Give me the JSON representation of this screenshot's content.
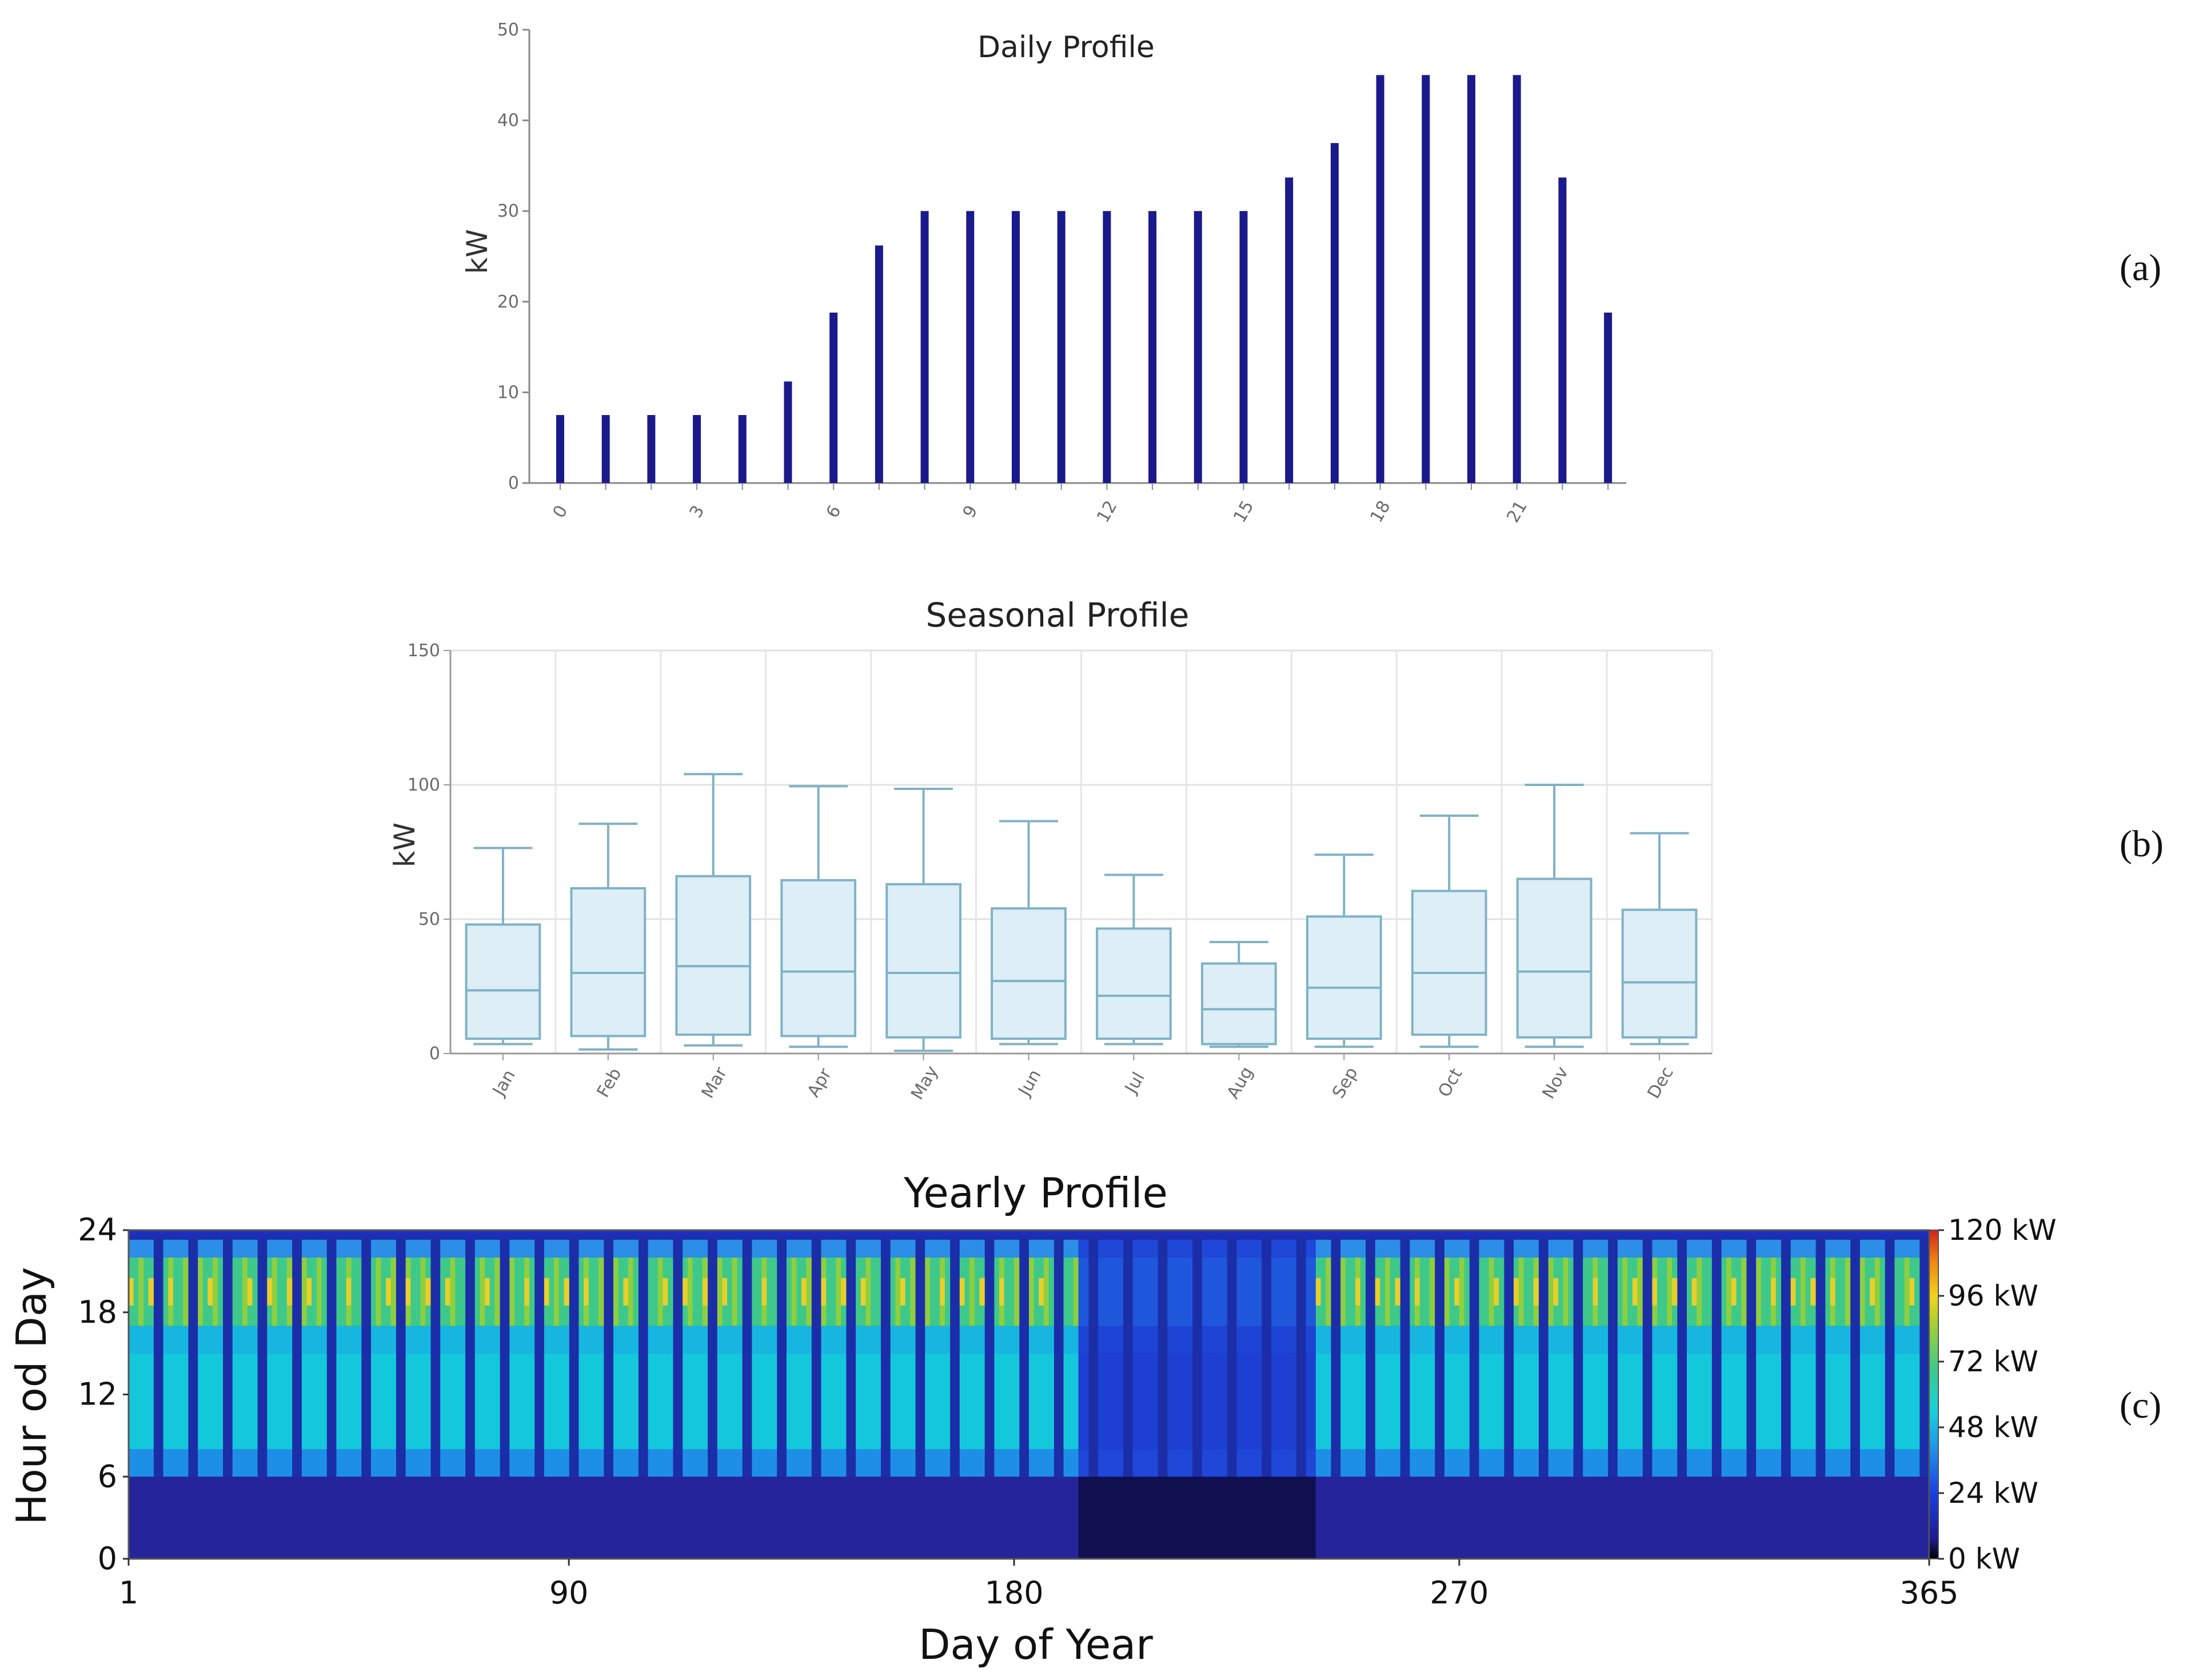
{
  "panel_tags": [
    "(a)",
    "(b)",
    "(c)"
  ],
  "chart_data": [
    {
      "id": "a",
      "type": "bar",
      "title": "Daily Profile",
      "ylabel": "kW",
      "xlabel": "",
      "ylim": [
        0,
        50
      ],
      "yticks": [
        "0",
        "10",
        "20",
        "30",
        "40",
        "50"
      ],
      "xticks": [
        "0",
        "3",
        "6",
        "9",
        "12",
        "15",
        "18",
        "21"
      ],
      "categories": [
        0,
        1,
        2,
        3,
        4,
        5,
        6,
        7,
        8,
        9,
        10,
        11,
        12,
        13,
        14,
        15,
        16,
        17,
        18,
        19,
        20,
        21,
        22,
        23
      ],
      "values": [
        7.5,
        7.5,
        7.5,
        7.5,
        7.5,
        11.2,
        18.8,
        26.2,
        30,
        30,
        30,
        30,
        30,
        30,
        30,
        30,
        33.7,
        37.5,
        45,
        45,
        45,
        45,
        33.7,
        18.8
      ],
      "color": "#1a1a8c"
    },
    {
      "id": "b",
      "type": "box",
      "title": "Seasonal Profile",
      "ylabel": "kW",
      "ylim": [
        0,
        150
      ],
      "yticks": [
        "0",
        "50",
        "100",
        "150"
      ],
      "categories": [
        "Jan",
        "Feb",
        "Mar",
        "Apr",
        "May",
        "Jun",
        "Jul",
        "Aug",
        "Sep",
        "Oct",
        "Nov",
        "Dec"
      ],
      "boxes": [
        {
          "min": 3.5,
          "q1": 5.5,
          "median": 23.5,
          "q3": 48,
          "max": 76.5
        },
        {
          "min": 1.5,
          "q1": 6.5,
          "median": 30,
          "q3": 61.5,
          "max": 85.5
        },
        {
          "min": 3,
          "q1": 7,
          "median": 32.5,
          "q3": 66,
          "max": 104
        },
        {
          "min": 2.5,
          "q1": 6.5,
          "median": 30.5,
          "q3": 64.5,
          "max": 99.5
        },
        {
          "min": 1,
          "q1": 6,
          "median": 30,
          "q3": 63,
          "max": 98.5
        },
        {
          "min": 3.5,
          "q1": 5.5,
          "median": 27,
          "q3": 54,
          "max": 86.5
        },
        {
          "min": 3.5,
          "q1": 5.5,
          "median": 21.5,
          "q3": 46.5,
          "max": 66.5
        },
        {
          "min": 2.5,
          "q1": 3.5,
          "median": 16.5,
          "q3": 33.5,
          "max": 41.5
        },
        {
          "min": 2.5,
          "q1": 5.5,
          "median": 24.5,
          "q3": 51,
          "max": 74
        },
        {
          "min": 2.5,
          "q1": 7,
          "median": 30,
          "q3": 60.5,
          "max": 88.5
        },
        {
          "min": 2.5,
          "q1": 6,
          "median": 30.5,
          "q3": 65,
          "max": 100
        },
        {
          "min": 3.5,
          "q1": 6,
          "median": 26.5,
          "q3": 53.5,
          "max": 82
        }
      ],
      "box_fill": "#ddeef7",
      "box_stroke": "#7fb2c6"
    },
    {
      "id": "c",
      "type": "heatmap",
      "title": "Yearly Profile",
      "xlabel": "Day of Year",
      "ylabel": "Hour od Day",
      "xlim": [
        1,
        365
      ],
      "ylim": [
        0,
        24
      ],
      "xticks": [
        "1",
        "90",
        "180",
        "270",
        "365"
      ],
      "yticks": [
        "0",
        "6",
        "12",
        "18",
        "24"
      ],
      "colorbar": {
        "range": [
          0,
          120
        ],
        "labels": [
          "0 kW",
          "24 kW",
          "48 kW",
          "72 kW",
          "96 kW",
          "120 kW"
        ]
      },
      "low_load_period_days": [
        193,
        241
      ]
    }
  ]
}
